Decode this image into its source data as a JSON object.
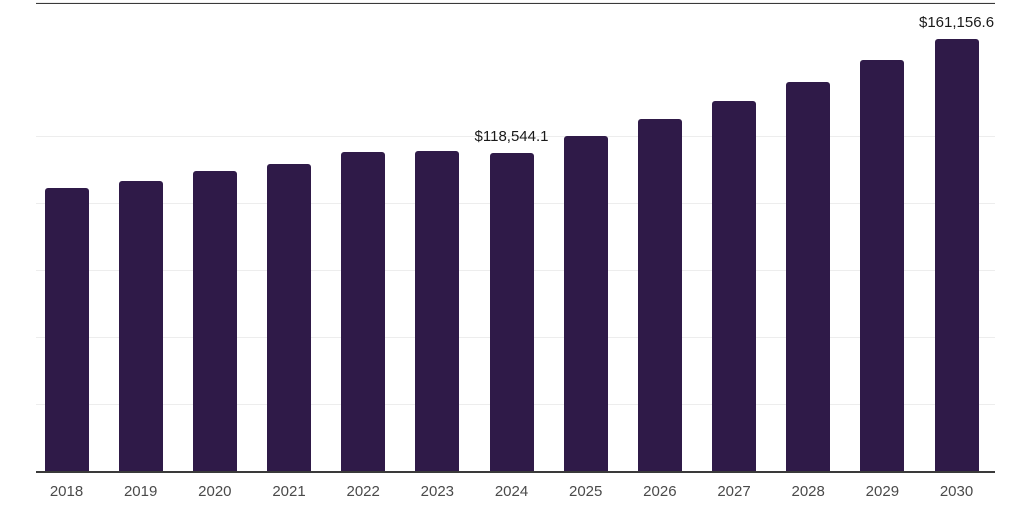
{
  "chart_data": {
    "type": "bar",
    "title": "",
    "xlabel": "",
    "ylabel": "",
    "categories": [
      "2018",
      "2019",
      "2020",
      "2021",
      "2022",
      "2023",
      "2024",
      "2025",
      "2026",
      "2027",
      "2028",
      "2029",
      "2030"
    ],
    "values": [
      105600,
      108200,
      111900,
      114400,
      119000,
      119400,
      118544.1,
      125000,
      131300,
      138000,
      145100,
      153500,
      161156.6
    ],
    "data_labels": [
      {
        "category": "2024",
        "text": "$118,544.1"
      },
      {
        "category": "2030",
        "text": "$161,156.6"
      }
    ],
    "ylim": [
      0,
      175000
    ],
    "gridline_step": 25000,
    "grid_on": true,
    "legend": "none",
    "y_axis_tick_labels_visible": false,
    "colors": {
      "bar": "#2f1a48",
      "axis_line": "#3a3a3a",
      "gridline": "#ededed",
      "data_label_text": "#1a1a1a",
      "tick_label_text": "#4a4a4a",
      "background": "#ffffff"
    }
  }
}
